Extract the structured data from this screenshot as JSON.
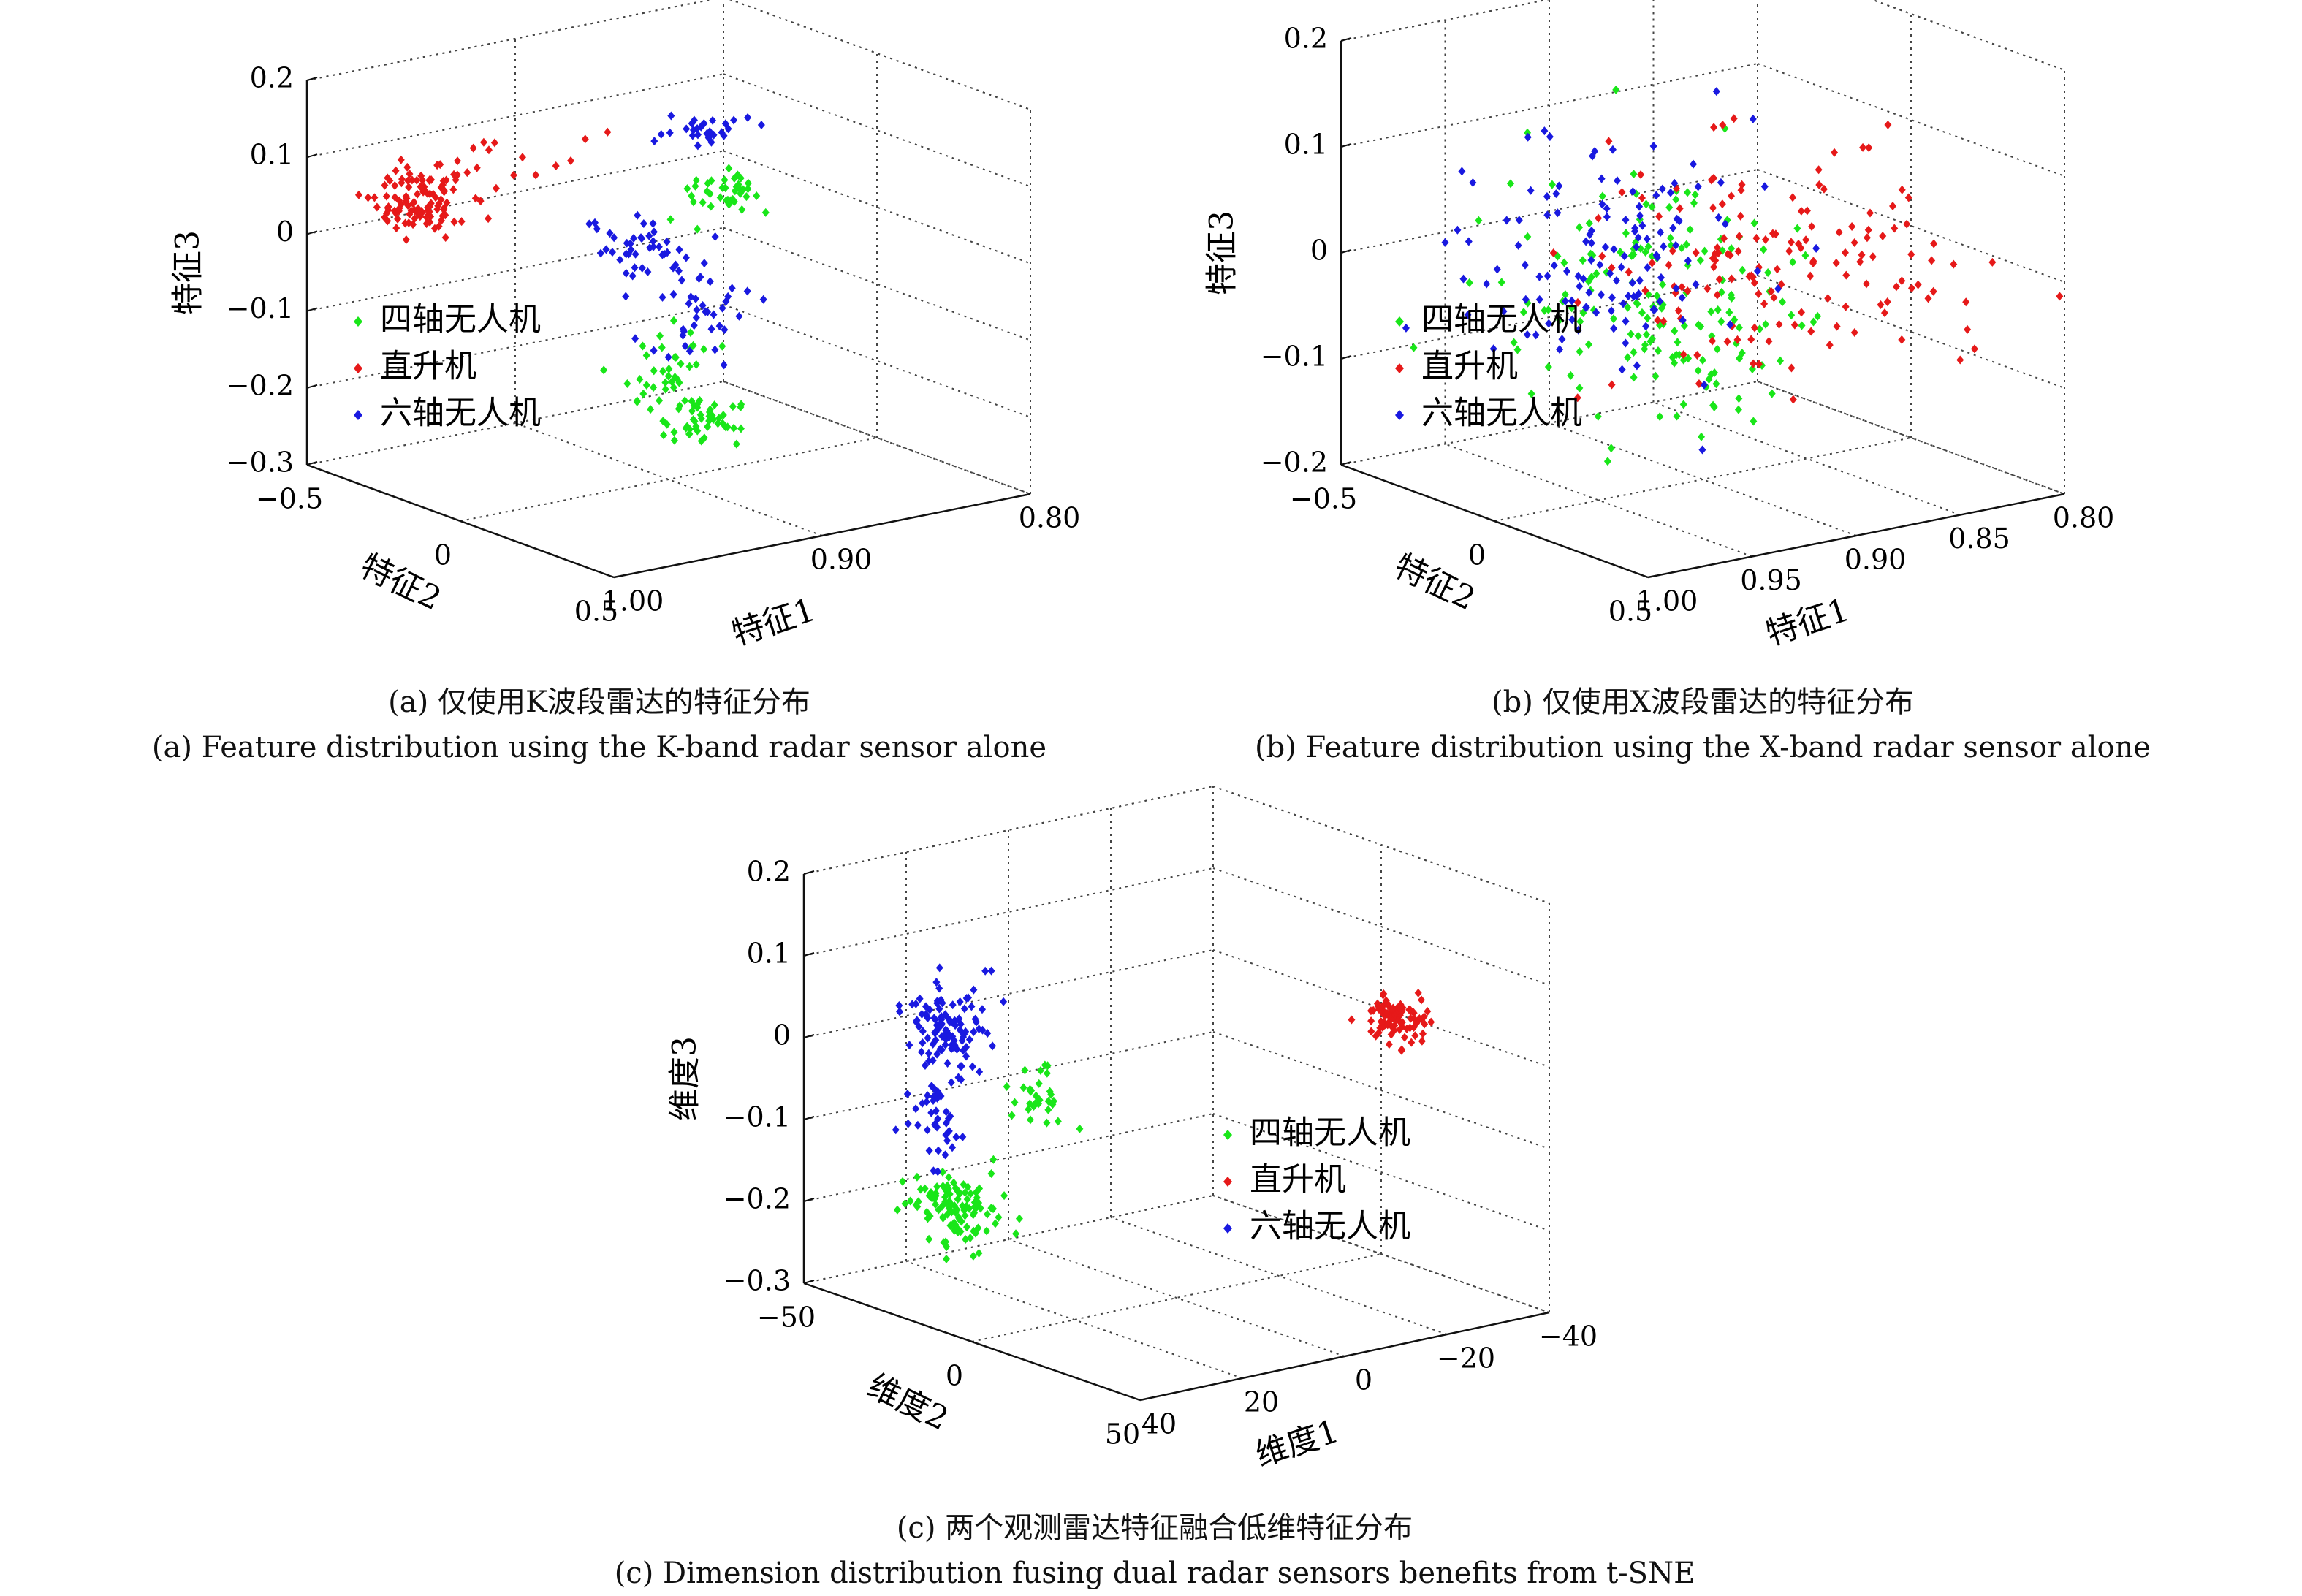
{
  "legend": {
    "quad": "四轴无人机",
    "heli": "直升机",
    "hexa": "六轴无人机"
  },
  "colors": {
    "quad": "#19e619",
    "heli": "#e61919",
    "hexa": "#1919e0"
  },
  "panels": [
    {
      "id": "a",
      "caption_cn": "(a) 仅使用K波段雷达的特征分布",
      "caption_en": "(a) Feature distribution using the K-band radar sensor alone",
      "z_label": "特征3",
      "y_label": "特征2",
      "x_label": "特征1",
      "z_ticks": [
        "0.2",
        "0.1",
        "0",
        "−0.1",
        "−0.2",
        "−0.3"
      ],
      "y_ticks": [
        "−0.5",
        "0",
        "0.5"
      ],
      "x_ticks": [
        "1.00",
        "0.90",
        "0.80"
      ]
    },
    {
      "id": "b",
      "caption_cn": "(b) 仅使用X波段雷达的特征分布",
      "caption_en": "(b) Feature distribution using the X-band radar sensor alone",
      "z_label": "特征3",
      "y_label": "特征2",
      "x_label": "特征1",
      "z_ticks": [
        "0.2",
        "0.1",
        "0",
        "−0.1",
        "−0.2"
      ],
      "y_ticks": [
        "−0.5",
        "0",
        "0.5"
      ],
      "x_ticks": [
        "1.00",
        "0.95",
        "0.90",
        "0.85",
        "0.80"
      ]
    },
    {
      "id": "c",
      "caption_cn": "(c) 两个观测雷达特征融合低维特征分布",
      "caption_en": "(c) Dimension distribution fusing dual radar sensors benefits from t-SNE",
      "z_label": "维度3",
      "y_label": "维度2",
      "x_label": "维度1",
      "z_ticks": [
        "0.2",
        "0.1",
        "0",
        "−0.1",
        "−0.2",
        "−0.3"
      ],
      "y_ticks": [
        "−50",
        "0",
        "50"
      ],
      "x_ticks": [
        "40",
        "20",
        "0",
        "−20",
        "−40"
      ]
    }
  ],
  "chart_data": [
    {
      "type": "scatter",
      "title": "(a) 仅使用K波段雷达的特征分布",
      "xlabel": "特征1",
      "ylabel": "特征2",
      "zlabel": "特征3",
      "xlim": [
        0.8,
        1.0
      ],
      "ylim": [
        -0.5,
        0.5
      ],
      "zlim": [
        -0.3,
        0.2
      ],
      "grid": true,
      "legend_position": "left",
      "series": [
        {
          "name": "四轴无人机",
          "color": "#19e619",
          "clusters": [
            {
              "center": [
                0.86,
                -0.1,
                0.04
              ],
              "spread": [
                0.01,
                0.03,
                0.015
              ],
              "count": 40
            },
            {
              "center": [
                0.93,
                0.2,
                -0.12
              ],
              "spread": [
                0.01,
                0.04,
                0.03
              ],
              "count": 45
            },
            {
              "center": [
                0.92,
                0.25,
                -0.18
              ],
              "spread": [
                0.01,
                0.03,
                0.015
              ],
              "count": 40
            }
          ]
        },
        {
          "name": "直升机",
          "color": "#e61919",
          "clusters": [
            {
              "center": [
                0.97,
                -0.35,
                0.05
              ],
              "spread": [
                0.01,
                0.04,
                0.02
              ],
              "count": 110
            },
            {
              "center": [
                0.93,
                -0.25,
                0.1
              ],
              "spread": [
                0.02,
                0.06,
                0.02
              ],
              "count": 14
            }
          ]
        },
        {
          "name": "六轴无人机",
          "color": "#1919e0",
          "clusters": [
            {
              "center": [
                0.85,
                -0.2,
                0.1
              ],
              "spread": [
                0.01,
                0.03,
                0.01
              ],
              "count": 30
            },
            {
              "center": [
                0.92,
                0.05,
                0.01
              ],
              "spread": [
                0.01,
                0.05,
                0.025
              ],
              "count": 45
            },
            {
              "center": [
                0.9,
                0.12,
                -0.06
              ],
              "spread": [
                0.01,
                0.04,
                0.03
              ],
              "count": 35
            }
          ]
        }
      ]
    },
    {
      "type": "scatter",
      "title": "(b) 仅使用X波段雷达的特征分布",
      "xlabel": "特征1",
      "ylabel": "特征2",
      "zlabel": "特征3",
      "xlim": [
        0.8,
        1.0
      ],
      "ylim": [
        -0.5,
        0.5
      ],
      "zlim": [
        -0.2,
        0.2
      ],
      "grid": true,
      "legend_position": "left",
      "series": [
        {
          "name": "四轴无人机",
          "color": "#19e619",
          "clusters": [
            {
              "center": [
                0.92,
                0.0,
                -0.02
              ],
              "spread": [
                0.03,
                0.15,
                0.06
              ],
              "count": 170
            }
          ]
        },
        {
          "name": "直升机",
          "color": "#e61919",
          "clusters": [
            {
              "center": [
                0.88,
                0.1,
                0.01
              ],
              "spread": [
                0.04,
                0.2,
                0.05
              ],
              "count": 150
            }
          ]
        },
        {
          "name": "六轴无人机",
          "color": "#1919e0",
          "clusters": [
            {
              "center": [
                0.93,
                -0.1,
                0.02
              ],
              "spread": [
                0.03,
                0.12,
                0.06
              ],
              "count": 130
            }
          ]
        }
      ]
    },
    {
      "type": "scatter",
      "title": "(c) 两个观测雷达特征融合低维特征分布",
      "xlabel": "维度1",
      "ylabel": "维度2",
      "zlabel": "维度3",
      "xlim": [
        -40,
        40
      ],
      "ylim": [
        -50,
        50
      ],
      "zlim": [
        -0.3,
        0.2
      ],
      "grid": true,
      "legend_position": "right",
      "series": [
        {
          "name": "四轴无人机",
          "color": "#19e619",
          "clusters": [
            {
              "center": [
                30,
                -20,
                -0.18
              ],
              "spread": [
                3,
                6,
                0.02
              ],
              "count": 110
            },
            {
              "center": [
                22,
                -8,
                -0.03
              ],
              "spread": [
                2,
                4,
                0.02
              ],
              "count": 30
            }
          ]
        },
        {
          "name": "直升机",
          "color": "#e61919",
          "clusters": [
            {
              "center": [
                -30,
                20,
                0.03
              ],
              "spread": [
                2,
                3,
                0.015
              ],
              "count": 90
            }
          ]
        },
        {
          "name": "六轴无人机",
          "color": "#1919e0",
          "clusters": [
            {
              "center": [
                28,
                -25,
                0.03
              ],
              "spread": [
                3,
                6,
                0.025
              ],
              "count": 110
            },
            {
              "center": [
                30,
                -25,
                -0.07
              ],
              "spread": [
                2,
                3,
                0.03
              ],
              "count": 40
            }
          ]
        }
      ]
    }
  ]
}
